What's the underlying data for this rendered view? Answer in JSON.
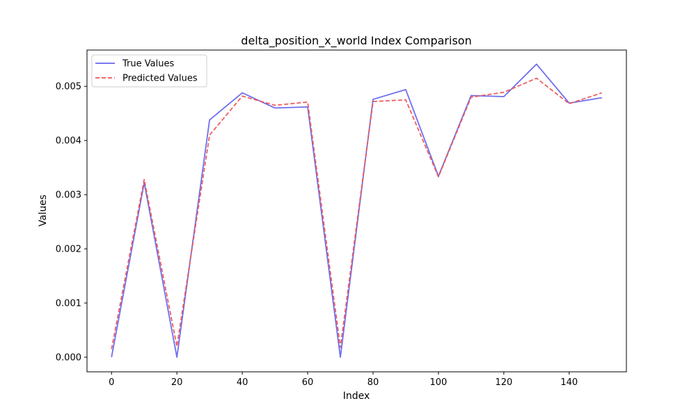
{
  "chart_data": {
    "type": "line",
    "title": "delta_position_x_world Index Comparison",
    "xlabel": "Index",
    "ylabel": "Values",
    "xlim": [
      -7.5,
      157.5
    ],
    "ylim": [
      -0.00027,
      0.00567
    ],
    "xticks": [
      0,
      20,
      40,
      60,
      80,
      100,
      120,
      140
    ],
    "yticks": [
      0.0,
      0.001,
      0.002,
      0.003,
      0.004,
      0.005
    ],
    "ytick_labels": [
      "0.000",
      "0.001",
      "0.002",
      "0.003",
      "0.004",
      "0.005"
    ],
    "grid": false,
    "legend_position": "top-left",
    "x": [
      0,
      10,
      20,
      30,
      40,
      50,
      60,
      70,
      80,
      90,
      100,
      110,
      120,
      130,
      140,
      150
    ],
    "series": [
      {
        "name": "True Values",
        "color": "#6666ee",
        "style": "solid",
        "values": [
          0.0,
          0.00322,
          0.0,
          0.00438,
          0.00488,
          0.0046,
          0.00462,
          0.0,
          0.00476,
          0.00494,
          0.00334,
          0.00483,
          0.00481,
          0.00541,
          0.00469,
          0.00479
        ]
      },
      {
        "name": "Predicted Values",
        "color": "#ee5555",
        "style": "dashed",
        "values": [
          0.00015,
          0.00328,
          0.0002,
          0.0041,
          0.00482,
          0.00465,
          0.00471,
          0.00018,
          0.00472,
          0.00475,
          0.00333,
          0.0048,
          0.00489,
          0.00515,
          0.00468,
          0.00488
        ]
      }
    ]
  }
}
